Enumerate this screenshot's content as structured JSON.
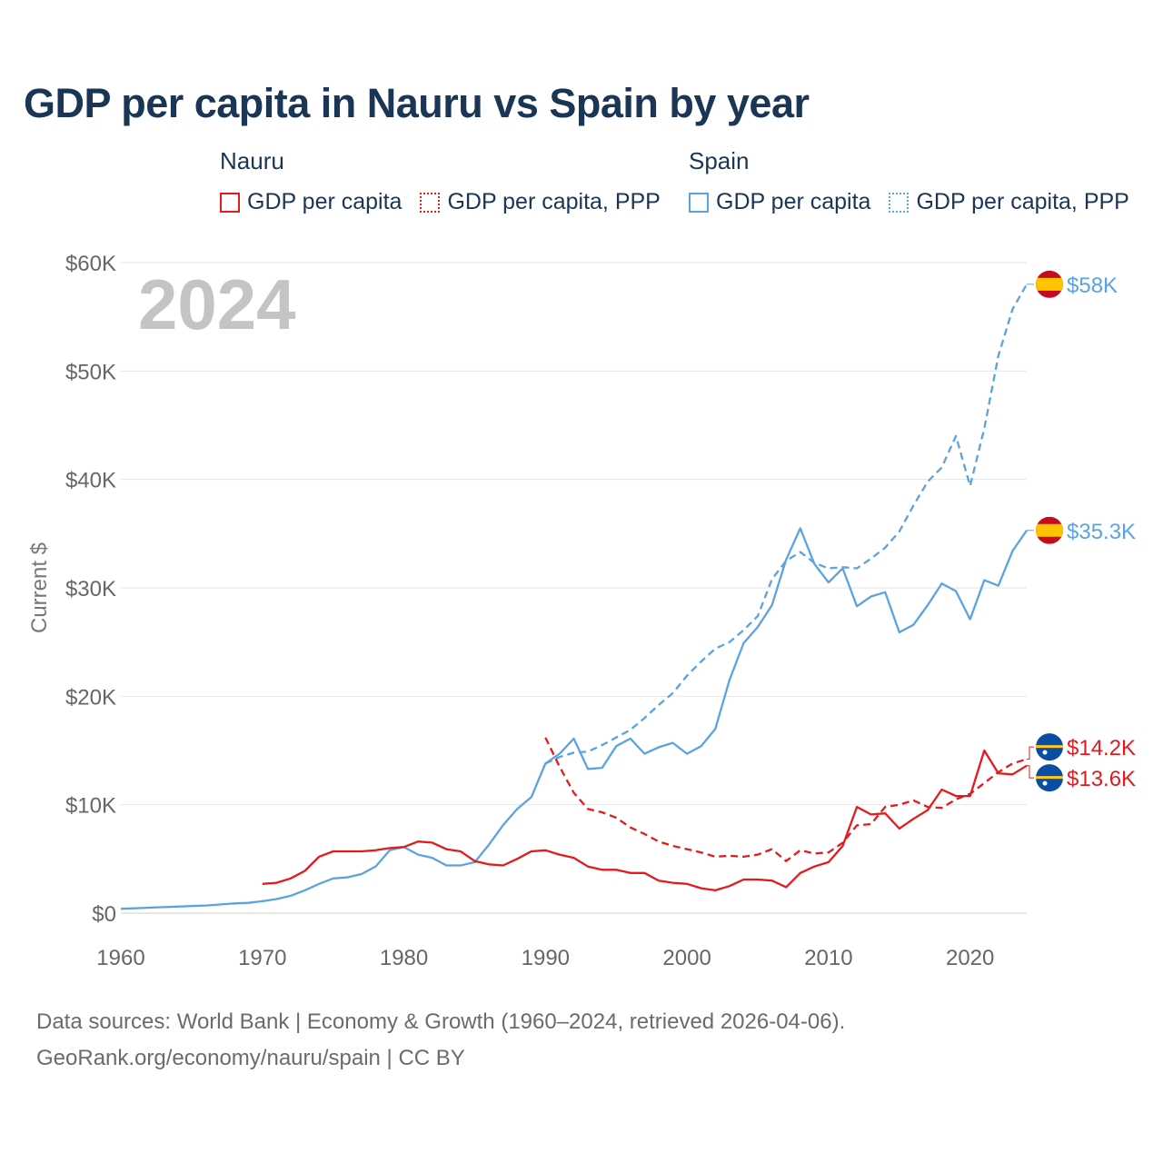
{
  "header": {
    "title": "GDP per capita in Nauru vs Spain by year"
  },
  "legend": {
    "groups": [
      {
        "name": "Nauru",
        "color": "#e41a1c",
        "items": [
          {
            "label": "GDP per capita",
            "style": "solid"
          },
          {
            "label": "GDP per capita, PPP",
            "style": "dotted"
          }
        ]
      },
      {
        "name": "Spain",
        "color": "#5ba3e0",
        "items": [
          {
            "label": "GDP per capita",
            "style": "solid"
          },
          {
            "label": "GDP per capita, PPP",
            "style": "dotted"
          }
        ]
      }
    ]
  },
  "chart_data": {
    "type": "line",
    "year_watermark": "2024",
    "ylabel": "Current $",
    "xlim": [
      1960,
      2024
    ],
    "ylim": [
      0,
      60000
    ],
    "x_ticks": [
      1960,
      1970,
      1980,
      1990,
      2000,
      2010,
      2020
    ],
    "y_ticks": [
      {
        "value": 0,
        "label": "$0"
      },
      {
        "value": 10000,
        "label": "$10K"
      },
      {
        "value": 20000,
        "label": "$20K"
      },
      {
        "value": 30000,
        "label": "$30K"
      },
      {
        "value": 40000,
        "label": "$40K"
      },
      {
        "value": 50000,
        "label": "$50K"
      },
      {
        "value": 60000,
        "label": "$60K"
      }
    ],
    "series": [
      {
        "name": "Spain GDP per capita",
        "country": "Spain",
        "color": "#5ba3e0",
        "style": "solid",
        "end_label": "$35.3K",
        "start_year": 1960,
        "values": [
          400,
          450,
          500,
          550,
          600,
          650,
          700,
          800,
          900,
          950,
          1100,
          1300,
          1600,
          2100,
          2700,
          3200,
          3300,
          3600,
          4300,
          5800,
          6100,
          5400,
          5100,
          4400,
          4400,
          4700,
          6300,
          8100,
          9600,
          10700,
          13800,
          14700,
          16100,
          13300,
          13400,
          15400,
          16100,
          14700,
          15300,
          15700,
          14700,
          15400,
          17000,
          21500,
          24900,
          26400,
          28400,
          32600,
          35500,
          32200,
          30500,
          31800,
          28300,
          29200,
          29600,
          25900,
          26600,
          28400,
          30400,
          29700,
          27100,
          30700,
          30200,
          33400,
          35300
        ]
      },
      {
        "name": "Spain GDP per capita, PPP",
        "country": "Spain",
        "color": "#5ba3e0",
        "style": "dashed",
        "end_label": "$58K",
        "start_year": 1990,
        "values": [
          13800,
          14400,
          14800,
          14900,
          15500,
          16200,
          16900,
          18000,
          19200,
          20300,
          21900,
          23200,
          24400,
          25000,
          26100,
          27400,
          30800,
          32500,
          33300,
          32300,
          31800,
          31900,
          31800,
          32700,
          33700,
          35200,
          37600,
          39800,
          41100,
          44000,
          39400,
          44700,
          51400,
          55700,
          58000
        ]
      },
      {
        "name": "Nauru GDP per capita",
        "country": "Nauru",
        "color": "#e41a1c",
        "style": "solid",
        "end_label": "$13.6K",
        "start_year": 1970,
        "values": [
          2700,
          2800,
          3200,
          3900,
          5200,
          5700,
          5700,
          5700,
          5800,
          6000,
          6100,
          6600,
          6500,
          5900,
          5700,
          4800,
          4500,
          4400,
          5000,
          5700,
          5800,
          5400,
          5100,
          4300,
          4000,
          4000,
          3700,
          3700,
          3000,
          2800,
          2700,
          2300,
          2100,
          2500,
          3100,
          3100,
          3000,
          2400,
          3700,
          4300,
          4700,
          6200,
          9800,
          9100,
          9200,
          7800,
          8700,
          9500,
          11400,
          10800,
          10800,
          15000,
          12900,
          12800,
          13600
        ]
      },
      {
        "name": "Nauru GDP per capita, PPP",
        "country": "Nauru",
        "color": "#e41a1c",
        "style": "dashed",
        "end_label": "$14.2K",
        "start_year": 1990,
        "values": [
          16200,
          13500,
          11100,
          9600,
          9300,
          8800,
          7900,
          7300,
          6600,
          6200,
          5900,
          5600,
          5200,
          5300,
          5200,
          5400,
          5900,
          4800,
          5800,
          5500,
          5600,
          6500,
          8100,
          8200,
          9800,
          10000,
          10400,
          9800,
          9700,
          10500,
          11000,
          12000,
          13000,
          13800,
          14200
        ]
      }
    ]
  },
  "footer": {
    "line1": "Data sources: World Bank | Economy & Growth (1960–2024, retrieved 2026-04-06).",
    "line2": "GeoRank.org/economy/nauru/spain | CC BY"
  }
}
